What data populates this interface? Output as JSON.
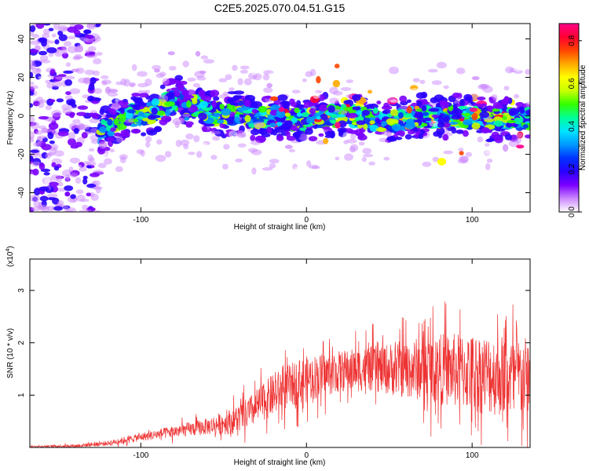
{
  "title": "C2E5.2025.070.04.51.G15",
  "chart_data": [
    {
      "type": "heatmap",
      "xlabel": "Height of straight line (km)",
      "ylabel": "Frequency (Hz)",
      "xlim": [
        -167,
        135
      ],
      "ylim": [
        -50,
        48
      ],
      "x_ticks": [
        -100,
        0,
        100
      ],
      "y_ticks": [
        -40,
        -20,
        0,
        20,
        40
      ],
      "colorbar": {
        "label": "Normalized spectral amplitude",
        "range": [
          0,
          0.88
        ],
        "ticks": [
          "0.0",
          "0.2",
          "0.4",
          "0.6",
          "0.8"
        ],
        "colors": [
          "#ffffff",
          "#cc88ff",
          "#7b00ff",
          "#2a00ff",
          "#0033ff",
          "#0099ff",
          "#00e5ff",
          "#00ff99",
          "#33ff00",
          "#c8ff00",
          "#ffff00",
          "#ffaa00",
          "#ff4400",
          "#ff0033",
          "#ff0088"
        ]
      },
      "ridge": [
        [
          -130,
          -12
        ],
        [
          -120,
          -6
        ],
        [
          -110,
          0
        ],
        [
          -100,
          0
        ],
        [
          -90,
          3
        ],
        [
          -80,
          8
        ],
        [
          -76,
          12
        ],
        [
          -72,
          2
        ],
        [
          -66,
          6
        ],
        [
          -60,
          2
        ],
        [
          -50,
          0
        ],
        [
          -40,
          2
        ],
        [
          -30,
          -2
        ],
        [
          -20,
          0
        ],
        [
          -10,
          -2
        ],
        [
          0,
          -2
        ],
        [
          10,
          0
        ],
        [
          20,
          0
        ],
        [
          30,
          0
        ],
        [
          40,
          -2
        ],
        [
          50,
          -3
        ],
        [
          60,
          -2
        ],
        [
          70,
          0
        ],
        [
          80,
          -1
        ],
        [
          90,
          0
        ],
        [
          100,
          -1
        ],
        [
          110,
          -2
        ],
        [
          120,
          -1
        ],
        [
          130,
          -2
        ],
        [
          135,
          -2
        ]
      ]
    },
    {
      "type": "line",
      "xlabel": "Height of straight line (km)",
      "ylabel": "SNR (10 * v/v)",
      "y_multiplier": "(x10",
      "y_multiplier_exp": "4",
      "y_multiplier_close": ")",
      "xlim": [
        -167,
        135
      ],
      "ylim": [
        0,
        3.6
      ],
      "x_ticks": [
        -100,
        0,
        100
      ],
      "y_ticks": [
        1,
        2,
        3
      ],
      "color": "#ee3333",
      "envelope": [
        [
          -167,
          0.02
        ],
        [
          -140,
          0.03
        ],
        [
          -120,
          0.08
        ],
        [
          -100,
          0.2
        ],
        [
          -80,
          0.3
        ],
        [
          -60,
          0.4
        ],
        [
          -45,
          0.5
        ],
        [
          -35,
          0.65
        ],
        [
          -25,
          0.9
        ],
        [
          -15,
          1.1
        ],
        [
          -5,
          1.25
        ],
        [
          5,
          1.35
        ],
        [
          20,
          1.45
        ],
        [
          35,
          1.5
        ],
        [
          50,
          1.5
        ],
        [
          65,
          1.5
        ],
        [
          80,
          1.5
        ],
        [
          95,
          1.45
        ],
        [
          110,
          1.4
        ],
        [
          125,
          1.35
        ],
        [
          135,
          1.3
        ]
      ],
      "spread": [
        [
          -167,
          0.01
        ],
        [
          -120,
          0.06
        ],
        [
          -90,
          0.12
        ],
        [
          -60,
          0.2
        ],
        [
          -40,
          0.35
        ],
        [
          -20,
          0.5
        ],
        [
          0,
          0.55
        ],
        [
          20,
          0.5
        ],
        [
          40,
          0.55
        ],
        [
          60,
          0.7
        ],
        [
          80,
          0.85
        ],
        [
          100,
          0.95
        ],
        [
          120,
          1.0
        ],
        [
          135,
          1.0
        ]
      ]
    }
  ]
}
